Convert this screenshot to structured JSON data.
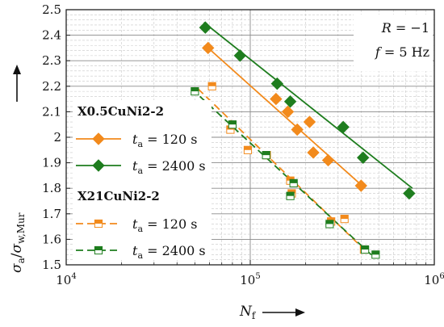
{
  "chart_data": {
    "type": "scatter",
    "title": "",
    "xscale": "log",
    "xlim": [
      10000,
      1000000
    ],
    "ylim": [
      1.5,
      2.5
    ],
    "xlabel": {
      "main": "N",
      "sub": "f"
    },
    "ylabel": {
      "num": "σ",
      "num_sub": "a",
      "den": "σ",
      "den_sub": "w,Mur"
    },
    "x_major_ticks": [
      {
        "value": 10000,
        "base": "10",
        "exp": "4"
      },
      {
        "value": 100000,
        "base": "10",
        "exp": "5"
      },
      {
        "value": 1000000,
        "base": "10",
        "exp": "6"
      }
    ],
    "y_ticks": [
      {
        "value": 1.5,
        "label": "1.5"
      },
      {
        "value": 1.6,
        "label": "1.6"
      },
      {
        "value": 1.7,
        "label": "1.7"
      },
      {
        "value": 1.8,
        "label": "1.8"
      },
      {
        "value": 1.9,
        "label": "1.9"
      },
      {
        "value": 2.0,
        "label": "2"
      },
      {
        "value": 2.1,
        "label": "2.1"
      },
      {
        "value": 2.2,
        "label": "2.2"
      },
      {
        "value": 2.3,
        "label": "2.3"
      },
      {
        "value": 2.4,
        "label": "2.4"
      },
      {
        "value": 2.5,
        "label": "2.5"
      }
    ],
    "grid": true,
    "annotations": [
      {
        "var": "R",
        "text": " = −1"
      },
      {
        "var": "f",
        "text": " = 5 Hz"
      }
    ],
    "legend_position": "left",
    "legend_groups": [
      "X0.5CuNi2-2",
      "X21CuNi2-2"
    ],
    "series": [
      {
        "group": "X0.5CuNi2-2",
        "name": "t_a = 120 s",
        "label_var": "t",
        "label_sub": "a",
        "label_rest": " = 120 s",
        "color": "#f28a1c",
        "marker": "diamond",
        "line": "solid",
        "points": [
          [
            59000,
            2.35
          ],
          [
            138000,
            2.15
          ],
          [
            160000,
            2.1
          ],
          [
            180000,
            2.03
          ],
          [
            210000,
            2.06
          ],
          [
            220000,
            1.94
          ],
          [
            265000,
            1.91
          ],
          [
            400000,
            1.81
          ]
        ],
        "fit": [
          [
            57000,
            2.36
          ],
          [
            420000,
            1.8
          ]
        ]
      },
      {
        "group": "X0.5CuNi2-2",
        "name": "t_a = 2400 s",
        "label_var": "t",
        "label_sub": "a",
        "label_rest": " = 2400 s",
        "color": "#1e7d1e",
        "marker": "diamond",
        "line": "solid",
        "points": [
          [
            57000,
            2.43
          ],
          [
            88000,
            2.32
          ],
          [
            140000,
            2.21
          ],
          [
            165000,
            2.14
          ],
          [
            320000,
            2.04
          ],
          [
            410000,
            1.92
          ],
          [
            730000,
            1.78
          ]
        ],
        "fit": [
          [
            56000,
            2.45
          ],
          [
            760000,
            1.8
          ]
        ]
      },
      {
        "group": "X21CuNi2-2",
        "name": "t_a = 120 s",
        "label_var": "t",
        "label_sub": "a",
        "label_rest": " = 120 s",
        "color": "#f28a1c",
        "marker": "square",
        "line": "dashed",
        "points": [
          [
            62000,
            2.2
          ],
          [
            78000,
            2.03
          ],
          [
            97000,
            1.95
          ],
          [
            123000,
            1.93
          ],
          [
            165000,
            1.83
          ],
          [
            168000,
            1.78
          ],
          [
            275000,
            1.67
          ],
          [
            325000,
            1.68
          ],
          [
            415000,
            1.56
          ]
        ],
        "fit": [
          [
            52000,
            2.19
          ],
          [
            430000,
            1.55
          ]
        ]
      },
      {
        "group": "X21CuNi2-2",
        "name": "t_a = 2400 s",
        "label_var": "t",
        "label_sub": "a",
        "label_rest": " = 2400 s",
        "color": "#1e7d1e",
        "marker": "square",
        "line": "dashed",
        "points": [
          [
            50000,
            2.18
          ],
          [
            80000,
            2.05
          ],
          [
            122000,
            1.93
          ],
          [
            165000,
            1.77
          ],
          [
            172000,
            1.82
          ],
          [
            270000,
            1.66
          ],
          [
            420000,
            1.56
          ],
          [
            480000,
            1.54
          ]
        ],
        "fit": [
          [
            48000,
            2.19
          ],
          [
            470000,
            1.53
          ]
        ]
      }
    ]
  }
}
